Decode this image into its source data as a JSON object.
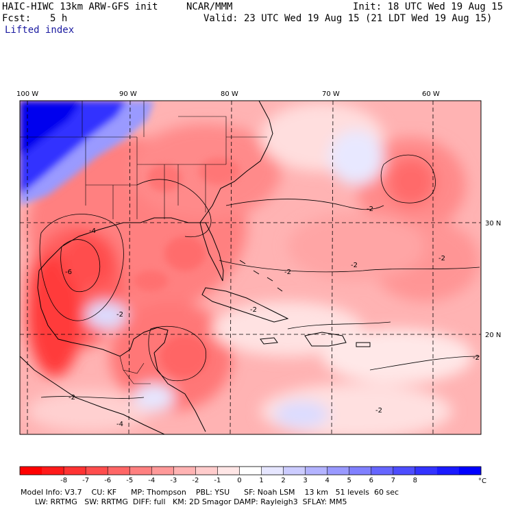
{
  "header": {
    "model": "HAIC-HIWC 13km ARW-GFS init",
    "org": "NCAR/MMM",
    "init": "Init: 18 UTC Wed 19 Aug 15",
    "fcst_label": "Fcst:",
    "fcst_value": "5 h",
    "valid": "Valid: 23 UTC Wed 19 Aug 15 (21 LDT Wed 19 Aug 15)",
    "field": "Lifted index"
  },
  "map": {
    "lon_labels": [
      "100 W",
      "90 W",
      "80 W",
      "70 W",
      "60 W"
    ],
    "lat_labels": [
      "30 N",
      "20 N"
    ],
    "contour_labels": [
      "-2",
      "-2",
      "-2",
      "-2",
      "-2",
      "-2",
      "-4",
      "-4",
      "-6",
      "-2",
      "-2",
      "-2"
    ]
  },
  "colorbar": {
    "ticks": [
      "-8",
      "-7",
      "-6",
      "-5",
      "-4",
      "-3",
      "-2",
      "-1",
      "0",
      "1",
      "2",
      "3",
      "4",
      "5",
      "6",
      "7",
      "8"
    ],
    "unit": "°C",
    "colors": [
      "#ff0000",
      "#ff1a1a",
      "#ff3333",
      "#ff4d4d",
      "#ff6666",
      "#ff8080",
      "#ff9999",
      "#ffb3b3",
      "#ffcccc",
      "#ffe6e6",
      "#ffffff",
      "#e6e6ff",
      "#ccccff",
      "#b3b3ff",
      "#9999ff",
      "#8080ff",
      "#6666ff",
      "#4d4dff",
      "#3333ff",
      "#1a1aff",
      "#0000ff"
    ]
  },
  "footer": {
    "line1": "Model Info: V3.7    CU: KF      MP: Thompson    PBL: YSU      SF: Noah LSM    13 km   51 levels  60 sec",
    "line2": "      LW: RRTMG   SW: RRTMG  DIFF: full   KM: 2D Smagor DAMP: Rayleigh3  SFLAY: MM5"
  }
}
